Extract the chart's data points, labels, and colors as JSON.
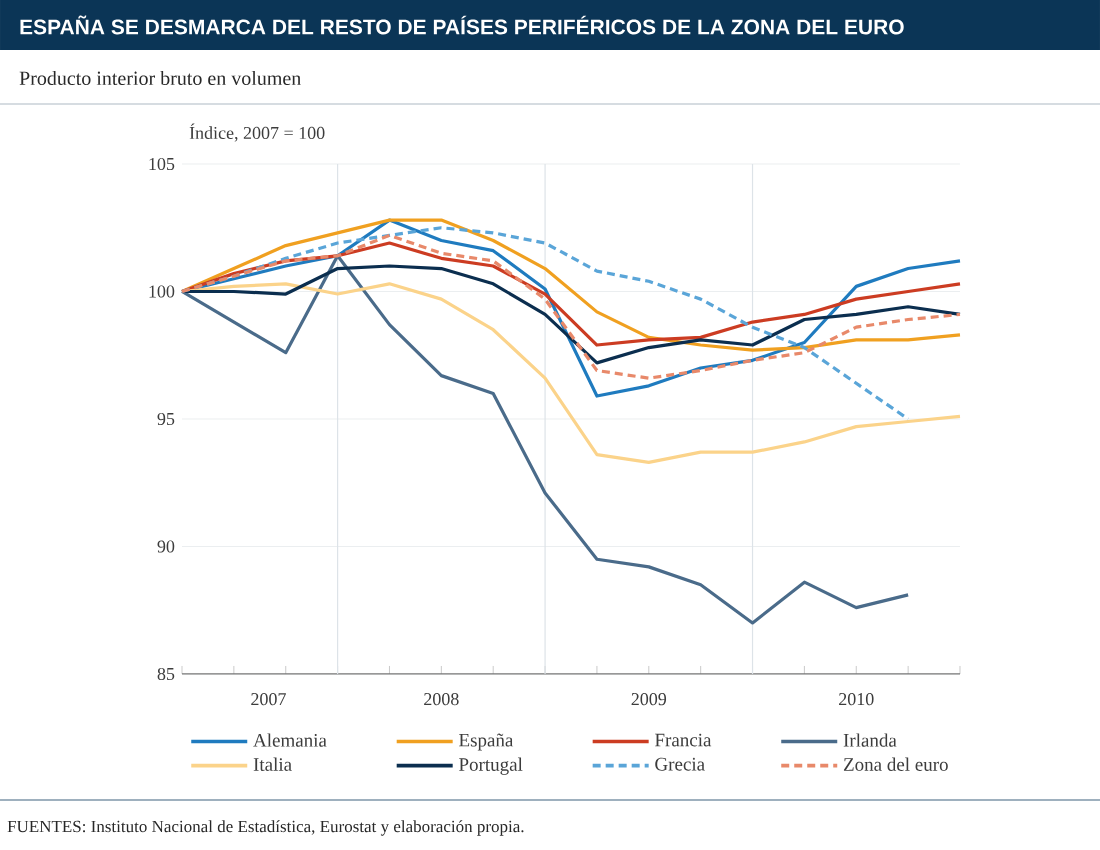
{
  "chart_data": {
    "type": "line",
    "title": "ESPAÑA SE DESMARCA DEL RESTO DE PAÍSES PERIFÉRICOS DE LA ZONA DEL EURO",
    "subtitle": "Producto interior bruto en volumen",
    "ylabel": "Índice, 2007 = 100",
    "x": [
      "2007-03",
      "2007-06",
      "2007-09",
      "2007-12",
      "2008-03",
      "2008-06",
      "2008-09",
      "2008-12",
      "2009-03",
      "2009-06",
      "2009-09",
      "2009-12",
      "2010-03",
      "2010-06",
      "2010-09",
      "2010-12"
    ],
    "xlim": [
      "2007-03",
      "2010-12"
    ],
    "xticks": [
      {
        "value": "2007-03",
        "label": null
      },
      {
        "value": "2007-06",
        "label": null
      },
      {
        "value": "2007-09",
        "label": null
      },
      {
        "value": "2007-12",
        "label": null
      },
      {
        "value": "2008-03",
        "label": null
      },
      {
        "value": "2008-06",
        "label": null
      },
      {
        "value": "2008-09",
        "label": null
      },
      {
        "value": "2008-12",
        "label": null
      },
      {
        "value": "2009-03",
        "label": null
      },
      {
        "value": "2009-06",
        "label": null
      },
      {
        "value": "2009-09",
        "label": null
      },
      {
        "value": "2009-12",
        "label": null
      },
      {
        "value": "2010-03",
        "label": null
      },
      {
        "value": "2010-06",
        "label": null
      },
      {
        "value": "2010-09",
        "label": null
      },
      {
        "value": "2010-12",
        "label": null
      },
      {
        "value": "2007-07-31",
        "label": "2007"
      },
      {
        "value": "2008-06",
        "label": "2008"
      },
      {
        "value": "2009-06",
        "label": "2009"
      },
      {
        "value": "2010-06",
        "label": "2010"
      }
    ],
    "ylim": [
      85,
      105
    ],
    "yticks": [
      85,
      90,
      95,
      100,
      105
    ],
    "grid": "y",
    "legend": "bottom",
    "ref_lines": [
      {
        "axis": "x",
        "value": "2007-12",
        "color": "#dde3e8"
      },
      {
        "axis": "x",
        "value": "2008-12",
        "color": "#dde3e8"
      },
      {
        "axis": "x",
        "value": "2009-12",
        "color": "#dde3e8"
      }
    ],
    "series": [
      {
        "name": "Alemania",
        "color": "#1f7bbf",
        "values": [
          100,
          100.5,
          101.0,
          101.4,
          102.8,
          102.0,
          101.6,
          100.1,
          95.9,
          96.3,
          97.0,
          97.3,
          98.0,
          100.2,
          100.9,
          101.2
        ]
      },
      {
        "name": "España",
        "color": "#f0a020",
        "values": [
          100,
          100.9,
          101.8,
          102.3,
          102.8,
          102.8,
          102.0,
          100.9,
          99.2,
          98.2,
          97.9,
          97.7,
          97.8,
          98.1,
          98.1,
          98.3
        ]
      },
      {
        "name": "Francia",
        "color": "#cc3c22",
        "values": [
          100,
          100.7,
          101.2,
          101.4,
          101.9,
          101.3,
          101.0,
          99.9,
          97.9,
          98.1,
          98.2,
          98.8,
          99.1,
          99.7,
          100.0,
          100.3
        ]
      },
      {
        "name": "Irlanda",
        "color": "#4a6b8a",
        "x": [
          "2007-03",
          "2007-09",
          "2007-12",
          "2008-03",
          "2008-06",
          "2008-09",
          "2008-12",
          "2009-03",
          "2009-06",
          "2009-09",
          "2009-12",
          "2010-03",
          "2010-06",
          "2010-09"
        ],
        "values": [
          100,
          97.6,
          101.4,
          98.7,
          96.7,
          96.0,
          92.1,
          89.5,
          89.2,
          88.5,
          87.0,
          88.6,
          87.6,
          88.1
        ]
      },
      {
        "name": "Italia",
        "color": "#fbd38a",
        "values": [
          100,
          100.2,
          100.3,
          99.9,
          100.3,
          99.7,
          98.5,
          96.6,
          93.6,
          93.3,
          93.7,
          93.7,
          94.1,
          94.7,
          94.9,
          95.1
        ]
      },
      {
        "name": "Portugal",
        "color": "#0b2e4f",
        "values": [
          100,
          100.0,
          99.9,
          100.9,
          101.0,
          100.9,
          100.3,
          99.1,
          97.2,
          97.8,
          98.1,
          97.9,
          98.9,
          99.1,
          99.4,
          99.1
        ]
      },
      {
        "name": "Grecia",
        "color": "#5aa5d8",
        "line_style": "dashed",
        "x": [
          "2007-03",
          "2007-06",
          "2007-09",
          "2007-12",
          "2008-03",
          "2008-06",
          "2008-09",
          "2008-12",
          "2009-03",
          "2009-06",
          "2009-09",
          "2009-12",
          "2010-03",
          "2010-06",
          "2010-09"
        ],
        "values": [
          100,
          100.6,
          101.3,
          101.9,
          102.2,
          102.5,
          102.3,
          101.9,
          100.8,
          100.4,
          99.7,
          98.6,
          97.8,
          96.4,
          95.0
        ]
      },
      {
        "name": "Zona del euro",
        "color": "#e8896a",
        "line_style": "dashed",
        "values": [
          100,
          100.6,
          101.2,
          101.4,
          102.2,
          101.5,
          101.2,
          99.7,
          96.9,
          96.6,
          96.9,
          97.3,
          97.6,
          98.6,
          98.9,
          99.1
        ]
      }
    ],
    "annotations": [
      "FUENTES: Instituto Nacional de Estadística, Eurostat y elaboración propia."
    ]
  }
}
